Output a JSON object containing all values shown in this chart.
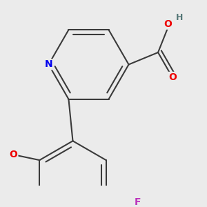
{
  "background_color": "#ebebeb",
  "bond_color": "#3a3a3a",
  "bond_width": 1.5,
  "atom_colors": {
    "N": "#0000ee",
    "O": "#ee0000",
    "F": "#bb33bb",
    "H": "#557777",
    "C": "#3a3a3a"
  },
  "font_size_atoms": 10,
  "font_size_h": 9
}
